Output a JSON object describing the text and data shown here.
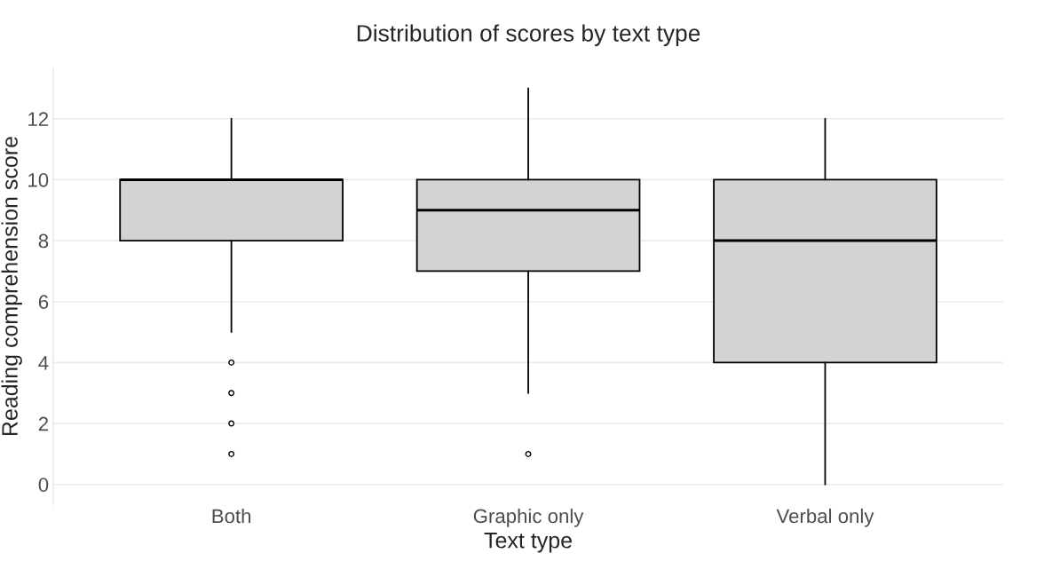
{
  "chart_data": {
    "type": "box",
    "title": "Distribution of scores by text type",
    "xlabel": "Text type",
    "ylabel": "Reading comprehension score",
    "categories": [
      "Both",
      "Graphic only",
      "Verbal only"
    ],
    "boxes": [
      {
        "low": 5,
        "q1": 8,
        "median": 10,
        "q3": 10,
        "high": 12,
        "outliers": [
          4,
          3,
          2,
          1
        ]
      },
      {
        "low": 3,
        "q1": 7,
        "median": 9,
        "q3": 10,
        "high": 13,
        "outliers": [
          1
        ]
      },
      {
        "low": 0,
        "q1": 4,
        "median": 8,
        "q3": 10,
        "high": 12
      }
    ],
    "color": "#d3d3d3",
    "ylim": [
      -0.65,
      13.65
    ],
    "yticks": [
      0,
      2,
      4,
      6,
      8,
      10,
      12
    ],
    "grid": "y",
    "legend": false
  }
}
